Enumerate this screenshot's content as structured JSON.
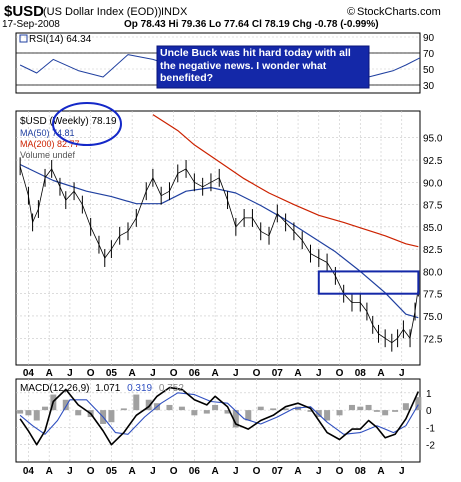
{
  "header": {
    "symbol": "$USD",
    "name": "(US Dollar Index (EOD))",
    "exchange": "INDX",
    "brand_left": "©",
    "brand_right": "StockCharts.com",
    "date": "17-Sep-2008",
    "quote": "Op 78.43  Hi 79.36  Lo 77.64  Cl 78.19  Chg -0.78 (-0.99%)"
  },
  "chart_data": [
    {
      "type": "line",
      "panel": "rsi",
      "legend": "RSI(14) 64.34",
      "ylim": [
        20,
        95
      ],
      "y_ticks": [
        30,
        50,
        70,
        90
      ],
      "y_tick_labels": [
        "30",
        "50",
        "70",
        "90"
      ],
      "reference_lines": [
        30,
        70
      ],
      "x": [
        2003.9,
        2004.1,
        2004.3,
        2004.6,
        2004.9,
        2005.2,
        2005.5,
        2005.8,
        2006.1,
        2006.4,
        2006.7,
        2007.0,
        2007.3,
        2007.6,
        2007.9,
        2008.1,
        2008.4,
        2008.55,
        2008.72
      ],
      "values": [
        55,
        45,
        62,
        48,
        40,
        68,
        62,
        52,
        50,
        40,
        55,
        45,
        42,
        38,
        32,
        40,
        48,
        55,
        64
      ],
      "annotation": "Uncle Buck was hit hard today with all the negative news.  I wonder what benefited?"
    },
    {
      "type": "ohlc",
      "panel": "price",
      "legend": [
        "$USD (Weekly) 78.19",
        "MA(50) 74.81",
        "MA(200) 82.77",
        "Volume undef"
      ],
      "ylim": [
        69.5,
        98
      ],
      "y_ticks": [
        72.5,
        75.0,
        77.5,
        80.0,
        82.5,
        85.0,
        87.5,
        90.0,
        92.5,
        95.0
      ],
      "y_tick_labels": [
        "72.5",
        "75.0",
        "77.5",
        "80.0",
        "82.5",
        "85.0",
        "87.5",
        "90.0",
        "92.5",
        "95.0"
      ],
      "x_tick_labels": [
        "04",
        "A",
        "J",
        "O",
        "05",
        "A",
        "J",
        "O",
        "06",
        "A",
        "J",
        "O",
        "07",
        "A",
        "J",
        "O",
        "08",
        "A",
        "J"
      ],
      "x_tick_positions": [
        2004.0,
        2004.25,
        2004.5,
        2004.75,
        2005.0,
        2005.25,
        2005.5,
        2005.75,
        2006.0,
        2006.25,
        2006.5,
        2006.75,
        2007.0,
        2007.25,
        2007.5,
        2007.75,
        2008.0,
        2008.25,
        2008.5
      ],
      "x_range": [
        2003.85,
        2008.72
      ],
      "series": [
        {
          "name": "$USD",
          "x": [
            2003.9,
            2004.0,
            2004.05,
            2004.12,
            2004.2,
            2004.28,
            2004.38,
            2004.45,
            2004.55,
            2004.65,
            2004.75,
            2004.85,
            2004.92,
            2005.0,
            2005.1,
            2005.2,
            2005.3,
            2005.42,
            2005.5,
            2005.6,
            2005.7,
            2005.8,
            2005.9,
            2006.0,
            2006.1,
            2006.2,
            2006.3,
            2006.4,
            2006.5,
            2006.6,
            2006.7,
            2006.8,
            2006.9,
            2007.0,
            2007.1,
            2007.2,
            2007.3,
            2007.4,
            2007.5,
            2007.6,
            2007.7,
            2007.8,
            2007.9,
            2008.0,
            2008.08,
            2008.15,
            2008.22,
            2008.3,
            2008.38,
            2008.45,
            2008.52,
            2008.6,
            2008.66,
            2008.7
          ],
          "values": [
            91.8,
            88.5,
            85.5,
            87.0,
            90.5,
            91.5,
            89.5,
            88.0,
            89.0,
            87.5,
            85.0,
            83.0,
            81.5,
            82.5,
            84.0,
            84.5,
            86.0,
            89.0,
            90.5,
            88.5,
            89.0,
            91.0,
            91.5,
            90.0,
            89.5,
            90.0,
            90.5,
            88.0,
            85.0,
            86.0,
            86.0,
            84.5,
            84.0,
            86.5,
            85.5,
            84.5,
            83.5,
            82.0,
            81.5,
            81.0,
            79.5,
            77.5,
            76.5,
            76.5,
            75.5,
            74.0,
            73.0,
            72.5,
            72.0,
            72.5,
            73.5,
            72.5,
            75.5,
            78.19
          ]
        },
        {
          "name": "MA(50)",
          "x": [
            2003.9,
            2004.3,
            2004.7,
            2005.0,
            2005.3,
            2005.6,
            2005.9,
            2006.2,
            2006.5,
            2006.8,
            2007.1,
            2007.4,
            2007.7,
            2008.0,
            2008.3,
            2008.55,
            2008.7
          ],
          "values": [
            92.0,
            90.2,
            89.0,
            88.4,
            87.6,
            87.6,
            89.0,
            89.4,
            88.8,
            87.4,
            85.8,
            84.0,
            82.2,
            80.0,
            77.6,
            75.2,
            74.81
          ]
        },
        {
          "name": "MA(200)",
          "x": [
            2005.5,
            2005.8,
            2006.0,
            2006.3,
            2006.6,
            2006.9,
            2007.2,
            2007.5,
            2007.8,
            2008.0,
            2008.3,
            2008.55,
            2008.7
          ],
          "values": [
            97.6,
            95.8,
            94.2,
            92.3,
            90.4,
            88.8,
            87.5,
            86.3,
            85.5,
            84.9,
            84.0,
            83.1,
            82.77
          ]
        }
      ],
      "highlight_box": {
        "x": [
          2007.5,
          2008.7
        ],
        "y": [
          77.5,
          80.0
        ]
      },
      "annotation_circle": {
        "around": "$USD (Weekly)"
      }
    },
    {
      "type": "line",
      "panel": "macd",
      "legend": {
        "label": "MACD(12,26,9)",
        "macd": "1.071",
        "signal": "0.319",
        "histogram": "0.752"
      },
      "ylim": [
        -3,
        1.8
      ],
      "y_ticks": [
        -2,
        -1,
        0,
        1
      ],
      "y_tick_labels": [
        "-2",
        "-1",
        "0",
        "1"
      ],
      "x_tick_labels": [
        "04",
        "A",
        "J",
        "O",
        "05",
        "A",
        "J",
        "O",
        "06",
        "A",
        "J",
        "O",
        "07",
        "A",
        "J",
        "O",
        "08",
        "A",
        "J"
      ],
      "series": [
        {
          "name": "MACD",
          "x": [
            2003.9,
            2004.0,
            2004.1,
            2004.2,
            2004.3,
            2004.45,
            2004.6,
            2004.75,
            2004.9,
            2005.0,
            2005.15,
            2005.3,
            2005.45,
            2005.55,
            2005.7,
            2005.85,
            2006.0,
            2006.15,
            2006.25,
            2006.4,
            2006.5,
            2006.65,
            2006.8,
            2006.95,
            2007.1,
            2007.25,
            2007.4,
            2007.5,
            2007.6,
            2007.75,
            2007.9,
            2008.0,
            2008.1,
            2008.2,
            2008.3,
            2008.42,
            2008.55,
            2008.7
          ],
          "values": [
            -0.5,
            -1.2,
            -2.0,
            -1.2,
            0.5,
            1.2,
            0.3,
            -0.2,
            -1.2,
            -2.0,
            -1.3,
            -0.3,
            0.2,
            0.8,
            1.3,
            1.2,
            0.6,
            0.3,
            0.8,
            0.2,
            -0.8,
            -1.1,
            -0.6,
            -0.3,
            0.2,
            0.4,
            0.1,
            -0.6,
            -1.3,
            -1.7,
            -1.1,
            -1.1,
            -0.6,
            -1.0,
            -1.6,
            -1.4,
            -0.5,
            1.071
          ]
        },
        {
          "name": "Signal",
          "x": [
            2003.9,
            2004.05,
            2004.2,
            2004.35,
            2004.5,
            2004.7,
            2004.9,
            2005.05,
            2005.2,
            2005.4,
            2005.6,
            2005.8,
            2006.0,
            2006.2,
            2006.4,
            2006.6,
            2006.8,
            2007.0,
            2007.2,
            2007.4,
            2007.6,
            2007.8,
            2008.0,
            2008.2,
            2008.4,
            2008.55,
            2008.7
          ],
          "values": [
            -0.3,
            -0.9,
            -1.4,
            -0.6,
            0.6,
            0.6,
            -0.4,
            -1.3,
            -1.4,
            -0.4,
            0.4,
            1.0,
            0.9,
            0.5,
            0.4,
            -0.5,
            -0.8,
            -0.4,
            0.1,
            0.2,
            -0.7,
            -1.4,
            -1.3,
            -0.9,
            -1.3,
            -0.9,
            0.319
          ]
        },
        {
          "name": "Histogram",
          "x": [
            2003.9,
            2004.0,
            2004.1,
            2004.2,
            2004.3,
            2004.45,
            2004.6,
            2004.75,
            2004.9,
            2005.0,
            2005.15,
            2005.3,
            2005.45,
            2005.55,
            2005.7,
            2005.85,
            2006.0,
            2006.15,
            2006.25,
            2006.4,
            2006.5,
            2006.65,
            2006.8,
            2006.95,
            2007.1,
            2007.25,
            2007.4,
            2007.5,
            2007.6,
            2007.75,
            2007.9,
            2008.0,
            2008.1,
            2008.2,
            2008.3,
            2008.42,
            2008.55,
            2008.7
          ],
          "values": [
            -0.2,
            -0.3,
            -0.6,
            0.2,
            0.9,
            0.6,
            -0.3,
            -0.4,
            -0.8,
            -0.7,
            0.1,
            0.9,
            0.6,
            0.4,
            0.3,
            0.2,
            -0.3,
            -0.2,
            0.3,
            -0.2,
            -1.0,
            -0.6,
            0.2,
            0.1,
            0.1,
            0.2,
            -0.1,
            -0.4,
            -0.6,
            -0.3,
            0.3,
            0.2,
            0.3,
            -0.1,
            -0.3,
            -0.1,
            0.4,
            0.752
          ]
        }
      ]
    }
  ],
  "colors": {
    "price": "#000000",
    "ma50": "#2040a0",
    "ma200": "#cc2200",
    "rsi": "#2040a0",
    "rsi_fill": "#2040a0",
    "macd": "#000000",
    "signal": "#3050c0",
    "histogram": "#a0a0a0",
    "annotation_fill": "#1428a8",
    "annotation_text": "#ffffff",
    "box": "#1428a8",
    "circle": "#1428c8",
    "grid": "#c8c8c8"
  }
}
